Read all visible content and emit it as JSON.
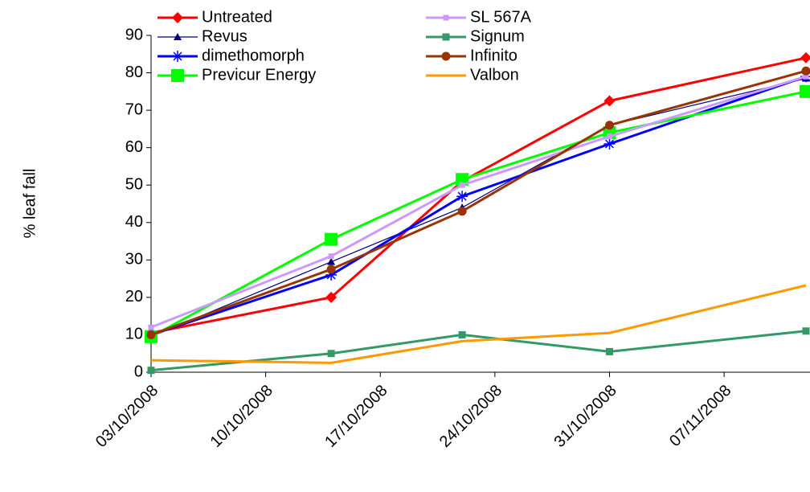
{
  "chart_data": {
    "type": "line",
    "y_label": "% leaf fall",
    "x": [
      "2008-10-03",
      "2008-10-14",
      "2008-10-22",
      "2008-10-31",
      "2008-11-12"
    ],
    "xlim": [
      "2008-10-03",
      "2008-11-12"
    ],
    "xticks": [
      {
        "value": "2008-10-03",
        "label": "03/10/2008"
      },
      {
        "value": "2008-10-10",
        "label": "10/10/2008"
      },
      {
        "value": "2008-10-17",
        "label": "17/10/2008"
      },
      {
        "value": "2008-10-24",
        "label": "24/10/2008"
      },
      {
        "value": "2008-10-31",
        "label": "31/10/2008"
      },
      {
        "value": "2008-11-07",
        "label": "07/11/2008"
      }
    ],
    "ylim": [
      0,
      90
    ],
    "yticks": [
      0,
      10,
      20,
      30,
      40,
      50,
      60,
      70,
      80,
      90
    ],
    "grid": false,
    "series": [
      {
        "name": "Untreated",
        "color": "#ff0000",
        "marker": "diamond",
        "values": [
          10.5,
          20,
          51,
          72.5,
          84
        ]
      },
      {
        "name": "Revus",
        "color": "#000080",
        "marker": "triangle",
        "values": [
          9.5,
          29.5,
          44,
          66,
          78.5
        ]
      },
      {
        "name": "dimethomorph",
        "color": "#0000ff",
        "marker": "star",
        "values": [
          10,
          26,
          47,
          61,
          79
        ]
      },
      {
        "name": "Previcur Energy",
        "color": "#00ff00",
        "marker": "square-large",
        "values": [
          9.5,
          35.5,
          51.5,
          64,
          75
        ]
      },
      {
        "name": "SL 567A",
        "color": "#cc99ff",
        "marker": "square-small",
        "values": [
          12,
          31,
          50,
          63,
          79
        ]
      },
      {
        "name": "Signum",
        "color": "#339966",
        "marker": "square",
        "values": [
          0.5,
          5,
          10,
          5.5,
          11
        ]
      },
      {
        "name": "Infinito",
        "color": "#993300",
        "marker": "circle",
        "values": [
          10,
          27.5,
          43,
          66,
          80.5
        ]
      },
      {
        "name": "Valbon",
        "color": "#ff9900",
        "marker": "none",
        "values": [
          3.2,
          2.5,
          8.3,
          10.5,
          23.2
        ]
      }
    ]
  }
}
